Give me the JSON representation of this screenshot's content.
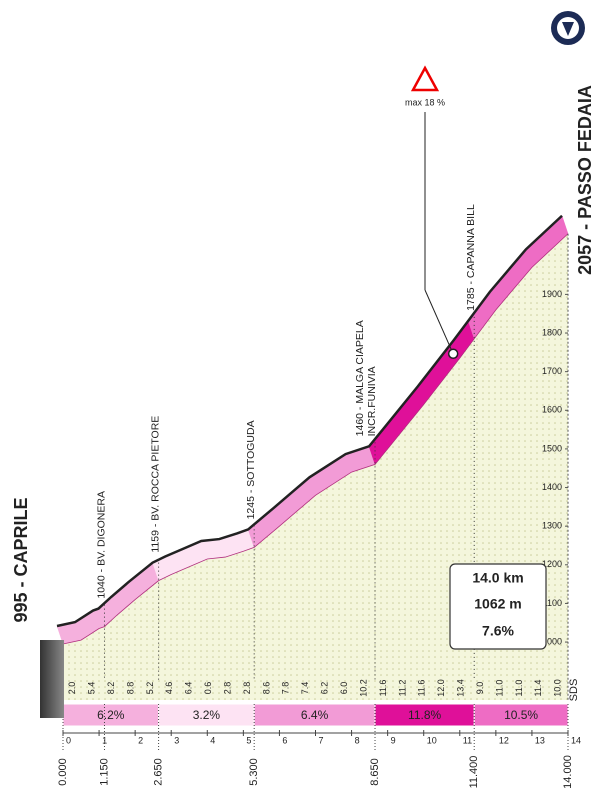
{
  "chart_data": {
    "type": "profile",
    "start_label": "995 - CAPRILE",
    "finish_label": "2057 - PASSO FEDAIA",
    "x": [
      0,
      0.5,
      1,
      1.15,
      1.5,
      2,
      2.65,
      3,
      3.5,
      4,
      4.5,
      5,
      5.3,
      6,
      6.5,
      7,
      7.5,
      8,
      8.65,
      9,
      10,
      11,
      11.4,
      12,
      13,
      14
    ],
    "values": [
      995,
      1005,
      1035,
      1040,
      1070,
      1110,
      1159,
      1175,
      1195,
      1215,
      1220,
      1235,
      1245,
      1300,
      1340,
      1380,
      1410,
      1440,
      1460,
      1500,
      1615,
      1735,
      1785,
      1860,
      1970,
      2057
    ],
    "xlim": [
      0,
      14
    ],
    "xticks": [
      0,
      1,
      2,
      3,
      4,
      5,
      6,
      7,
      8,
      9,
      10,
      11,
      12,
      13,
      14
    ],
    "ylim": [
      850,
      2090
    ],
    "yticks": [
      1000,
      1100,
      1200,
      1300,
      1400,
      1500,
      1600,
      1700,
      1800,
      1900
    ],
    "area_color": "#f4f6dc",
    "segments": {
      "from": [
        0,
        2.65,
        5.3,
        8.65,
        11.4
      ],
      "to": [
        2.65,
        5.3,
        8.65,
        11.4,
        14
      ],
      "values": [
        6.2,
        3.2,
        6.4,
        11.8,
        10.5
      ],
      "value_labels": [
        "6.2%",
        "3.2%",
        "6.4%",
        "11.8%",
        "10.5%"
      ],
      "colors": [
        "#f5b0dd",
        "#fde3f3",
        "#f29bd6",
        "#df1099",
        "#ee6cc4"
      ]
    },
    "gradients": {
      "values": [
        2,
        5.4,
        8.2,
        8.8,
        5.2,
        4.6,
        6.4,
        0.6,
        2.8,
        2.8,
        8.6,
        7.8,
        7.4,
        6.2,
        6,
        10.2,
        11.6,
        11.2,
        11.6,
        12,
        13.4,
        9,
        11,
        11,
        11.4,
        10
      ],
      "value_labels": [
        "2.0",
        "5.4",
        "8.2",
        "8.8",
        "5.2",
        "4.6",
        "6.4",
        "0.6",
        "2.8",
        "2.8",
        "8.6",
        "7.8",
        "7.4",
        "6.2",
        "6.0",
        "10.2",
        "11.6",
        "11.2",
        "11.6",
        "12.0",
        "13.4",
        "9.0",
        "11.0",
        "11.0",
        "11.4",
        "10.0"
      ]
    },
    "waypoints": [
      {
        "km": 1.15,
        "lines": [
          "1040 - BV. DIGONERA"
        ]
      },
      {
        "km": 2.65,
        "lines": [
          "1159 - BV. ROCCA PIETORE"
        ]
      },
      {
        "km": 5.3,
        "lines": [
          "1245 - SOTTOGUDA"
        ]
      },
      {
        "km": 8.65,
        "lines": [
          "1460 - MALGA CIAPELA",
          "INCR.FUNIVIA"
        ]
      },
      {
        "km": 11.4,
        "lines": [
          "1785 - CAPANNA BILL"
        ]
      }
    ],
    "distance_labels": [
      {
        "value": 0,
        "label": "0.000"
      },
      {
        "value": 1.15,
        "label": "1.150"
      },
      {
        "value": 2.65,
        "label": "2.650"
      },
      {
        "value": 5.3,
        "label": "5.300"
      },
      {
        "value": 8.65,
        "label": "8.650"
      },
      {
        "value": 11.4,
        "label": "11.400"
      },
      {
        "value": 14,
        "label": "14.000"
      }
    ],
    "max_gradient": {
      "label": "max 18 %",
      "km": 10.9
    },
    "summary": [
      "14.0 km",
      "1062 m",
      "7.6%"
    ],
    "footer_label": "SDS"
  }
}
